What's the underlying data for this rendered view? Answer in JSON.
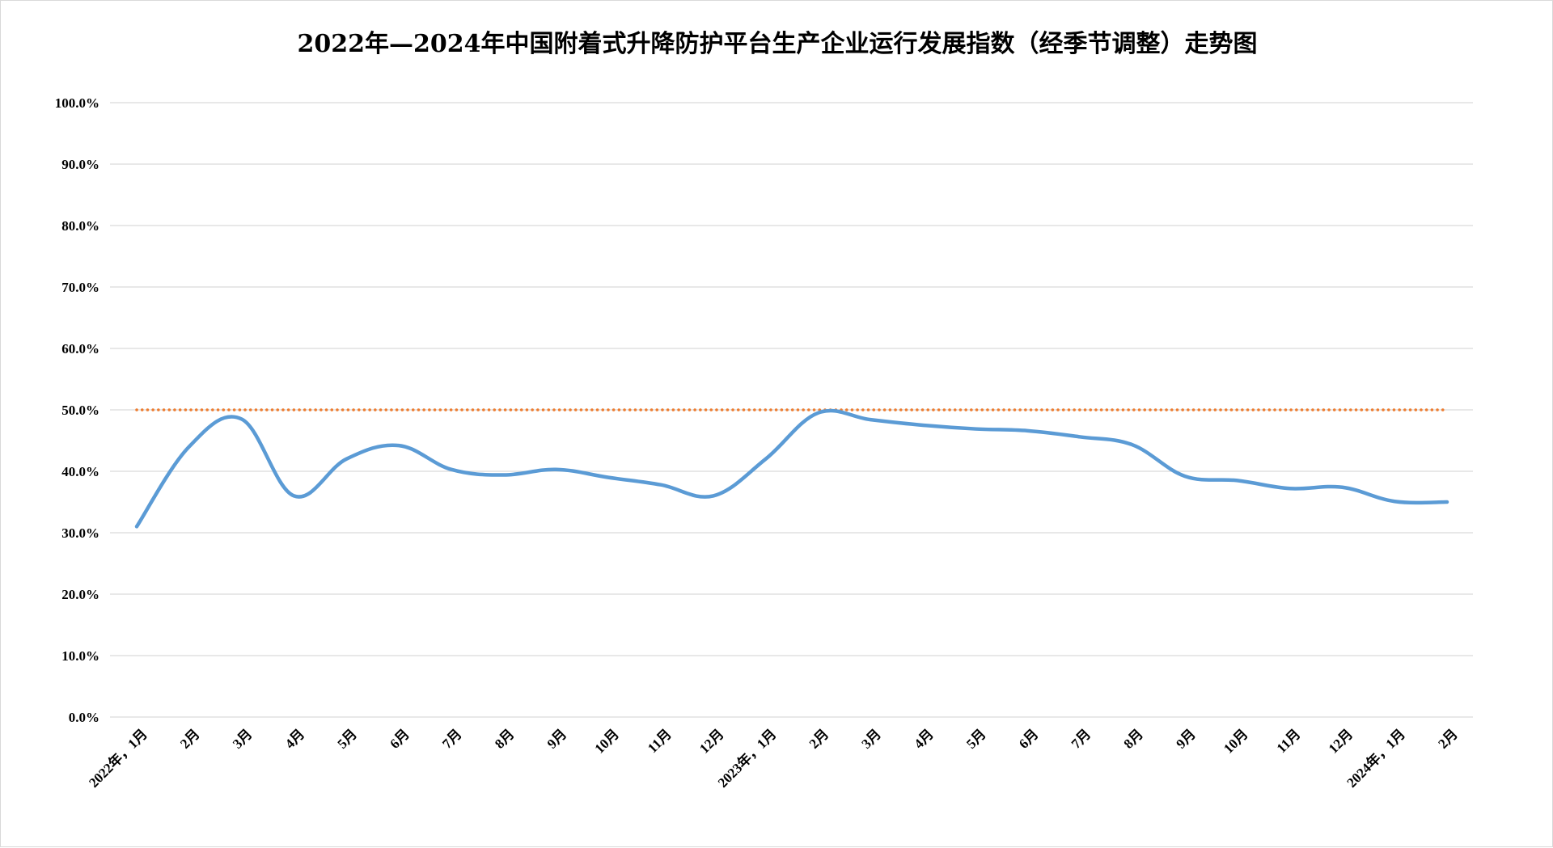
{
  "chart_data": {
    "type": "line",
    "title": "2022年—2024年中国附着式升降防护平台生产企业运行发展指数（经季节调整）走势图",
    "xlabel": "",
    "ylabel": "",
    "ylim": [
      0,
      100
    ],
    "ytick_labels": [
      "0.0%",
      "10.0%",
      "20.0%",
      "30.0%",
      "40.0%",
      "50.0%",
      "60.0%",
      "70.0%",
      "80.0%",
      "90.0%",
      "100.0%"
    ],
    "categories": [
      "2022年，1月",
      "2月",
      "3月",
      "4月",
      "5月",
      "6月",
      "7月",
      "8月",
      "9月",
      "10月",
      "11月",
      "12月",
      "2023年，1月",
      "2月",
      "3月",
      "4月",
      "5月",
      "6月",
      "7月",
      "8月",
      "9月",
      "10月",
      "11月",
      "12月",
      "2024年，1月",
      "2月"
    ],
    "series": [
      {
        "values": [
          31.0,
          44.0,
          48.5,
          36.0,
          42.0,
          44.2,
          40.3,
          39.4,
          40.3,
          39.0,
          37.8,
          36.0,
          42.0,
          49.5,
          48.4,
          47.5,
          46.9,
          46.6,
          45.6,
          44.3,
          39.2,
          38.5,
          37.2,
          37.4,
          35.1,
          35.0
        ],
        "color": "#5b9bd5",
        "style": "solid-smooth"
      },
      {
        "values": [
          50,
          50,
          50,
          50,
          50,
          50,
          50,
          50,
          50,
          50,
          50,
          50,
          50,
          50,
          50,
          50,
          50,
          50,
          50,
          50,
          50,
          50,
          50,
          50,
          50,
          50
        ],
        "color": "#ed7d31",
        "style": "dotted"
      }
    ],
    "grid": true,
    "legend": "none"
  }
}
